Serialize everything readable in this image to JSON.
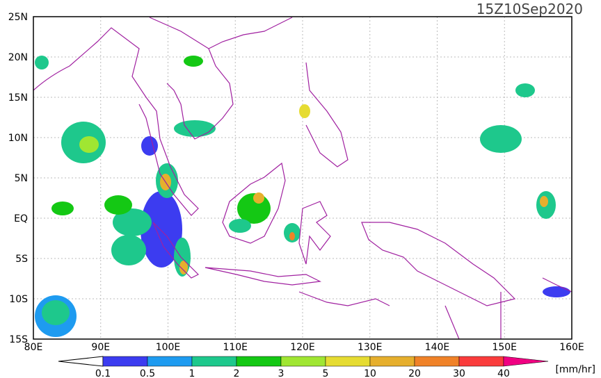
{
  "title": "15Z10Sep2020",
  "lon_labels": [
    "80E",
    "90E",
    "100E",
    "110E",
    "120E",
    "130E",
    "140E",
    "150E",
    "160E"
  ],
  "lat_labels": [
    "25N",
    "20N",
    "15N",
    "10N",
    "5N",
    "EQ",
    "5S",
    "10S",
    "15S"
  ],
  "colorbar": {
    "labels": [
      "0.1",
      "0.5",
      "1",
      "2",
      "3",
      "5",
      "10",
      "20",
      "30",
      "40"
    ],
    "colors": [
      "#3c3cf0",
      "#1e9bf0",
      "#1ec88c",
      "#14c814",
      "#a0e632",
      "#e6dc32",
      "#e6af2d",
      "#f08228",
      "#fa3c3c",
      "#f00082"
    ],
    "unit": "[mm/hr]"
  }
}
